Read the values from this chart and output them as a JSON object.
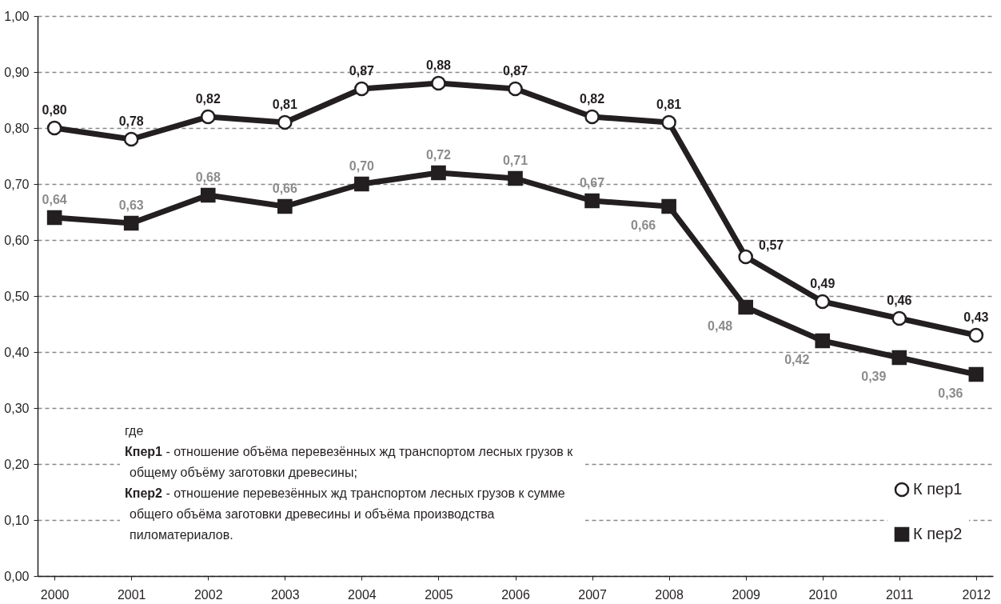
{
  "chart_data": {
    "type": "line",
    "categories": [
      "2000",
      "2001",
      "2002",
      "2003",
      "2004",
      "2005",
      "2006",
      "2007",
      "2008",
      "2009",
      "2010",
      "2011",
      "2012"
    ],
    "series": [
      {
        "name": "К пер1",
        "color": "#231f20",
        "marker": "circle",
        "values": [
          0.8,
          0.78,
          0.82,
          0.81,
          0.87,
          0.88,
          0.87,
          0.82,
          0.81,
          0.57,
          0.49,
          0.46,
          0.43
        ],
        "value_labels": [
          "0,80",
          "0,78",
          "0,82",
          "0,81",
          "0,87",
          "0,88",
          "0,87",
          "0,82",
          "0,81",
          "0,57",
          "0,49",
          "0,46",
          "0,43"
        ]
      },
      {
        "name": "К пер2",
        "color": "#231f20",
        "marker": "square",
        "values": [
          0.64,
          0.63,
          0.68,
          0.66,
          0.7,
          0.72,
          0.71,
          0.67,
          0.66,
          0.48,
          0.42,
          0.39,
          0.36
        ],
        "value_labels": [
          "0,64",
          "0,63",
          "0,68",
          "0,66",
          "0,70",
          "0,72",
          "0,71",
          "0,67",
          "0,66",
          "0,48",
          "0,42",
          "0,39",
          "0,36"
        ]
      }
    ],
    "ylim": [
      0,
      1
    ],
    "yticks": [
      {
        "value": 0,
        "label": "0,00"
      },
      {
        "value": 0.1,
        "label": "0,10"
      },
      {
        "value": 0.2,
        "label": "0,20"
      },
      {
        "value": 0.3,
        "label": "0,30"
      },
      {
        "value": 0.4,
        "label": "0,40"
      },
      {
        "value": 0.5,
        "label": "0,50"
      },
      {
        "value": 0.6,
        "label": "0,60"
      },
      {
        "value": 0.7,
        "label": "0,70"
      },
      {
        "value": 0.8,
        "label": "0,80"
      },
      {
        "value": 0.9,
        "label": "0,90"
      },
      {
        "value": 1,
        "label": "1,00"
      }
    ],
    "grid": "y",
    "legend": "bottom right",
    "line_style": "solid",
    "annotations": [
      "где",
      "Кпер1 - отношение объёма перевезённых жд транспортом лесных грузов к общему объёму заготовки древесины;",
      "Кпер2 - отношение перевезённых жд транспортом лесных грузов к сумме общего объёма заготовки древесины и объёма производства пиломатериалов."
    ]
  }
}
